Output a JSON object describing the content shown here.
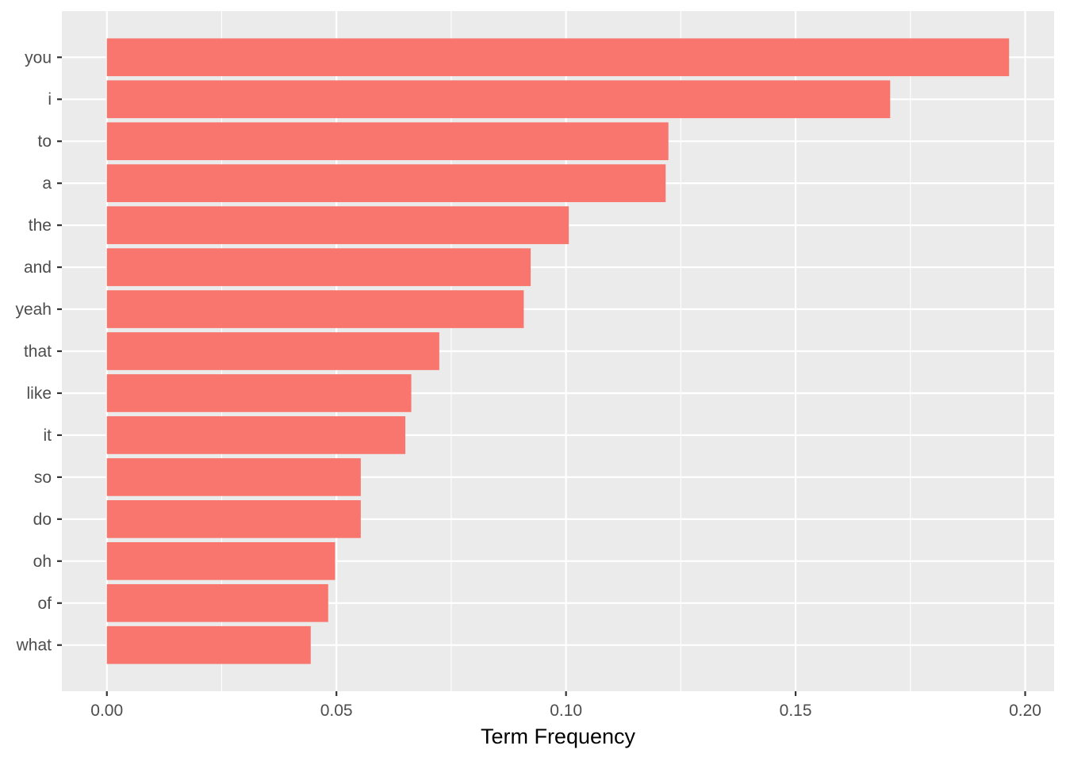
{
  "chart_data": {
    "type": "bar",
    "orientation": "horizontal",
    "categories": [
      "you",
      "i",
      "to",
      "a",
      "the",
      "and",
      "yeah",
      "that",
      "like",
      "it",
      "so",
      "do",
      "oh",
      "of",
      "what"
    ],
    "values": [
      0.1965,
      0.1706,
      0.1223,
      0.1217,
      0.1006,
      0.0923,
      0.0908,
      0.0724,
      0.0663,
      0.065,
      0.0553,
      0.0553,
      0.0497,
      0.0482,
      0.0444
    ],
    "x_ticks": [
      "0.00",
      "0.05",
      "0.10",
      "0.15",
      "0.20"
    ],
    "x_tick_values": [
      0,
      0.05,
      0.1,
      0.15,
      0.2
    ],
    "xlabel": "Term Frequency",
    "ylabel": "",
    "xlim": [
      -0.0098,
      0.2063
    ],
    "grid": true,
    "legend": "none",
    "colors": {
      "bar": "#f8766d",
      "panel": "#ebebeb",
      "grid": "#ffffff",
      "tick": "#333333",
      "text": "#4d4d4d"
    }
  }
}
